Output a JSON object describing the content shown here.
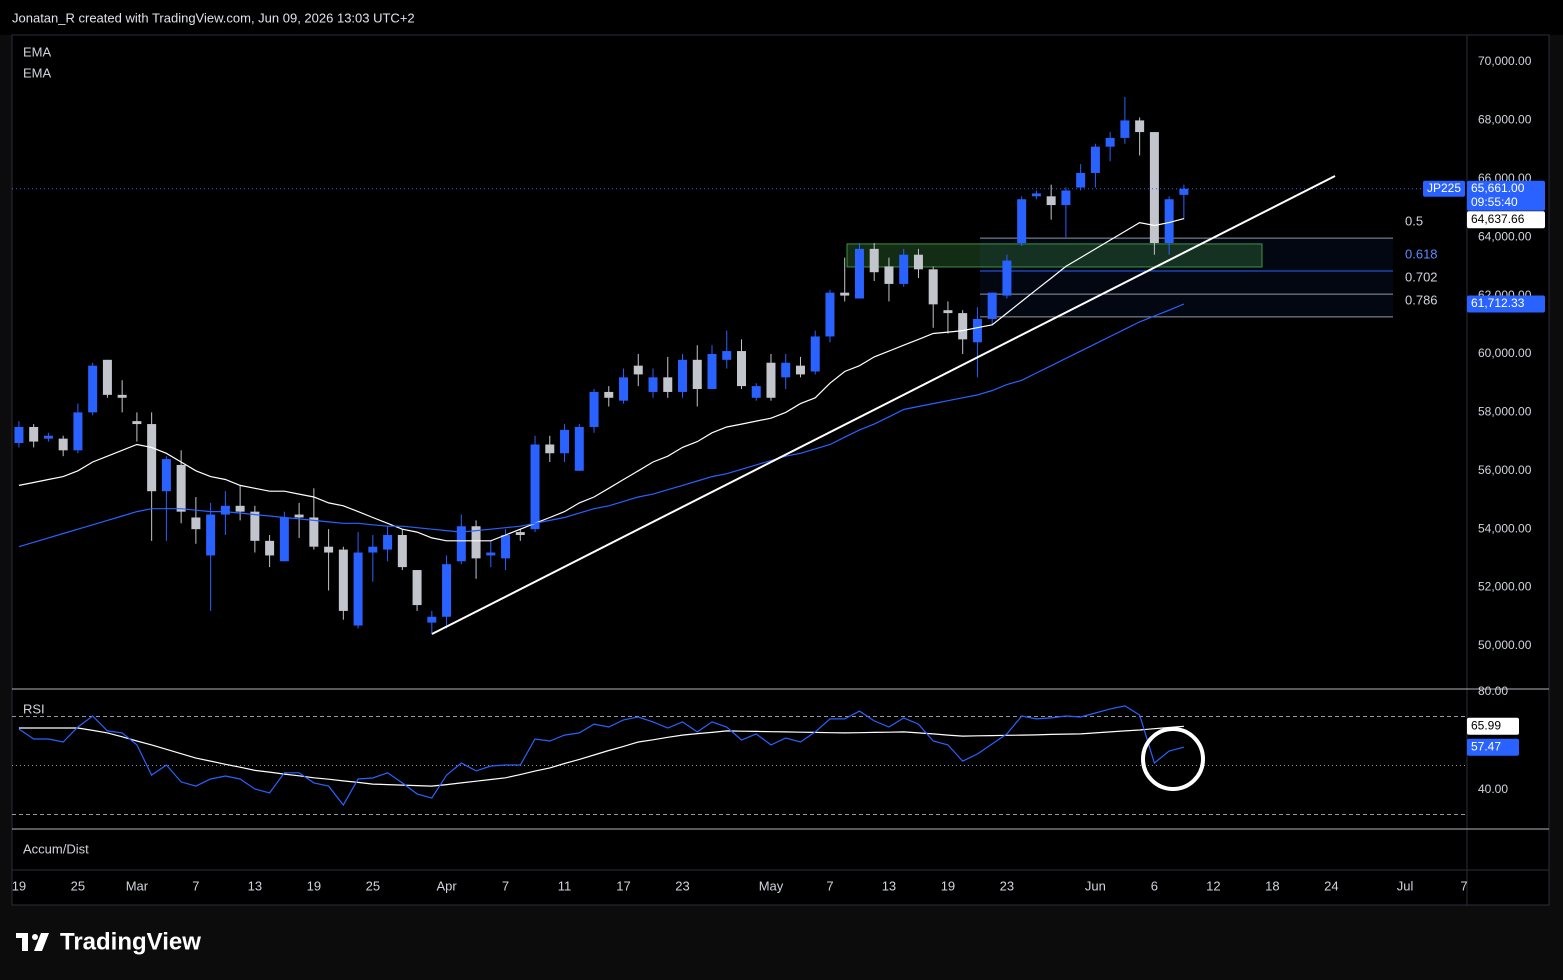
{
  "header": {
    "attribution": "Jonatan_R created with TradingView.com, Jun 09, 2026 13:03 UTC+2"
  },
  "footer": {
    "logo": "TradingView"
  },
  "chart_data": [
    {
      "type": "candlestick",
      "symbol": "JP225",
      "countdown": "09:55:40",
      "colors": {
        "up": "#2962ff",
        "down": "#c3c5cc"
      },
      "open": [
        56950,
        57500,
        57100,
        57100,
        56700,
        58000,
        59800,
        58600,
        57700,
        57600,
        55300,
        56200,
        54400,
        53100,
        54500,
        54800,
        54600,
        53600,
        52900,
        54500,
        54400,
        53400,
        53300,
        50700,
        53200,
        53300,
        53800,
        52600,
        50800,
        51000,
        52900,
        54100,
        53100,
        53000,
        53900,
        54000,
        56900,
        56600,
        56000,
        57500,
        58700,
        58400,
        59600,
        58700,
        59200,
        58700,
        59800,
        58800,
        59800,
        60100,
        58500,
        59700,
        59200,
        59600,
        59400,
        60600,
        62100,
        61900,
        63600,
        63000,
        62400,
        63400,
        62900,
        61500,
        61400,
        60400,
        61200,
        62000,
        63800,
        65400,
        65400,
        65100,
        65700,
        66200,
        67100,
        67400,
        68000,
        67600,
        63800,
        65450
      ],
      "high": [
        57700,
        57600,
        57300,
        57200,
        58300,
        59700,
        59800,
        59100,
        58000,
        58000,
        56500,
        56700,
        55100,
        54900,
        55300,
        55500,
        54800,
        53800,
        54600,
        54900,
        55400,
        54000,
        53400,
        53900,
        53800,
        54100,
        54000,
        52600,
        51200,
        53100,
        54500,
        54300,
        53600,
        54000,
        54000,
        57200,
        57200,
        57600,
        57600,
        58800,
        58900,
        59500,
        60000,
        59500,
        59900,
        60000,
        60300,
        60300,
        60800,
        60500,
        59000,
        60000,
        60000,
        59900,
        60800,
        62200,
        63300,
        63800,
        63800,
        63300,
        63600,
        63600,
        63000,
        61800,
        61500,
        61600,
        62100,
        63400,
        65400,
        65600,
        65800,
        65700,
        66500,
        67200,
        67600,
        68800,
        68100,
        67600,
        65400,
        65800
      ],
      "low": [
        56800,
        56800,
        57000,
        56500,
        56600,
        57900,
        58500,
        58000,
        57000,
        53600,
        53600,
        54200,
        53500,
        51200,
        53800,
        54300,
        53200,
        52700,
        52900,
        53700,
        53300,
        51900,
        50900,
        50600,
        52200,
        52900,
        52600,
        51200,
        50400,
        50600,
        52800,
        52300,
        52700,
        52600,
        53600,
        53900,
        56300,
        56300,
        56000,
        57300,
        58200,
        58300,
        58900,
        58500,
        58500,
        58500,
        58200,
        58800,
        59500,
        58800,
        58400,
        58400,
        58800,
        59200,
        59300,
        60400,
        61800,
        61900,
        62500,
        61800,
        62300,
        62600,
        60900,
        60700,
        60000,
        59200,
        61000,
        61900,
        63700,
        65300,
        64600,
        64000,
        65600,
        65700,
        66600,
        67200,
        66800,
        63400,
        63400,
        64600
      ],
      "close": [
        57500,
        57000,
        57200,
        56700,
        58000,
        59600,
        58600,
        58500,
        57600,
        55300,
        56400,
        54600,
        54000,
        54500,
        54800,
        54600,
        53600,
        53100,
        54400,
        54400,
        53400,
        53200,
        51200,
        53200,
        53400,
        53800,
        52700,
        51400,
        51000,
        52800,
        54100,
        53000,
        53200,
        53800,
        53800,
        56900,
        56600,
        57400,
        57500,
        58700,
        58500,
        59200,
        59300,
        59200,
        58700,
        59800,
        58800,
        60000,
        60100,
        58900,
        58900,
        58500,
        59700,
        59300,
        60600,
        62100,
        62000,
        63600,
        62800,
        62400,
        63400,
        62900,
        61700,
        61400,
        60500,
        61200,
        62100,
        63200,
        65300,
        65500,
        65100,
        65600,
        66200,
        67100,
        67400,
        68000,
        67600,
        63800,
        65300,
        65661
      ],
      "last_label": "65,661.00",
      "series": [
        {
          "name": "EMA",
          "color": "#ffffff",
          "last_label": "64,637.66",
          "values": [
            55500,
            55600,
            55700,
            55800,
            56000,
            56300,
            56500,
            56700,
            56900,
            56800,
            56600,
            56300,
            56000,
            55800,
            55700,
            55500,
            55400,
            55300,
            55300,
            55200,
            55100,
            54900,
            54800,
            54600,
            54400,
            54200,
            54000,
            53900,
            53700,
            53600,
            53600,
            53600,
            53600,
            53800,
            54000,
            54200,
            54400,
            54600,
            54900,
            55100,
            55400,
            55700,
            56000,
            56300,
            56500,
            56800,
            57000,
            57300,
            57500,
            57600,
            57700,
            57800,
            58000,
            58300,
            58500,
            59000,
            59400,
            59600,
            59900,
            60100,
            60300,
            60500,
            60700,
            60750,
            60800,
            60900,
            61000,
            61400,
            61800,
            62200,
            62600,
            63000,
            63300,
            63600,
            63900,
            64200,
            64500,
            64400,
            64500,
            64637.66
          ]
        },
        {
          "name": "EMA",
          "color": "#2962ff",
          "last_label": "61,712.33",
          "values": [
            53400,
            53550,
            53700,
            53850,
            54000,
            54150,
            54300,
            54450,
            54600,
            54700,
            54700,
            54700,
            54650,
            54600,
            54600,
            54550,
            54500,
            54450,
            54400,
            54350,
            54300,
            54250,
            54200,
            54200,
            54150,
            54100,
            54100,
            54050,
            54000,
            53950,
            53900,
            53950,
            54000,
            54050,
            54100,
            54200,
            54300,
            54400,
            54550,
            54700,
            54800,
            54950,
            55100,
            55200,
            55350,
            55500,
            55650,
            55800,
            55900,
            56050,
            56200,
            56350,
            56500,
            56600,
            56750,
            56900,
            57150,
            57400,
            57600,
            57850,
            58100,
            58200,
            58300,
            58400,
            58500,
            58600,
            58750,
            58950,
            59100,
            59350,
            59600,
            59850,
            60100,
            60350,
            60600,
            60850,
            61100,
            61300,
            61500,
            61712.33
          ]
        }
      ],
      "fib": [
        {
          "ratio": 0.5,
          "price": 63970,
          "color": "#9598a1"
        },
        {
          "ratio": 0.618,
          "price": 62840,
          "color": "#2962ff"
        },
        {
          "ratio": 0.702,
          "price": 62050,
          "color": "#9598a1"
        },
        {
          "ratio": 0.786,
          "price": 61270,
          "color": "#9598a1"
        }
      ],
      "zone": {
        "low": 62980,
        "high": 63770,
        "color": "#4caf50"
      },
      "ylim": [
        48560,
        70925
      ],
      "yticks": [
        {
          "value": 50000,
          "label": "50,000.00"
        },
        {
          "value": 52000,
          "label": "52,000.00"
        },
        {
          "value": 54000,
          "label": "54,000.00"
        },
        {
          "value": 56000,
          "label": "56,000.00"
        },
        {
          "value": 58000,
          "label": "58,000.00"
        },
        {
          "value": 60000,
          "label": "60,000.00"
        },
        {
          "value": 62000,
          "label": "62,000.00"
        },
        {
          "value": 64000,
          "label": "64,000.00"
        },
        {
          "value": 66000,
          "label": "66,000.00"
        },
        {
          "value": 68000,
          "label": "68,000.00"
        },
        {
          "value": 70000,
          "label": "70,000.00"
        }
      ],
      "xlim": [
        -0.47,
        98.2
      ],
      "xticks": [
        {
          "value": 0,
          "label": "19"
        },
        {
          "value": 4,
          "label": "25"
        },
        {
          "value": 8,
          "label": "Mar"
        },
        {
          "value": 12,
          "label": "7"
        },
        {
          "value": 16,
          "label": "13"
        },
        {
          "value": 20,
          "label": "19"
        },
        {
          "value": 24,
          "label": "25"
        },
        {
          "value": 29,
          "label": "Apr"
        },
        {
          "value": 33,
          "label": "7"
        },
        {
          "value": 37,
          "label": "11"
        },
        {
          "value": 41,
          "label": "17"
        },
        {
          "value": 45,
          "label": "23"
        },
        {
          "value": 51,
          "label": "May"
        },
        {
          "value": 55,
          "label": "7"
        },
        {
          "value": 59,
          "label": "13"
        },
        {
          "value": 63,
          "label": "19"
        },
        {
          "value": 67,
          "label": "23"
        },
        {
          "value": 73,
          "label": "Jun"
        },
        {
          "value": 77,
          "label": "6"
        },
        {
          "value": 81,
          "label": "12"
        },
        {
          "value": 85,
          "label": "18"
        },
        {
          "value": 89,
          "label": "24"
        },
        {
          "value": 94,
          "label": "Jul"
        },
        {
          "value": 98,
          "label": "7"
        }
      ],
      "grid": false
    },
    {
      "type": "line",
      "title": "RSI",
      "ylim": [
        24.5,
        80.8
      ],
      "yticks": [
        {
          "value": 80,
          "label": "80.00"
        },
        {
          "value": 40,
          "label": "40.00"
        }
      ],
      "levels": [
        70,
        50,
        30
      ],
      "series": [
        {
          "color": "#ffffff",
          "last_label": "65.99",
          "values": [
            65.3,
            65.3,
            65.3,
            65.3,
            65.3,
            64.3,
            63.3,
            61.7,
            60.0,
            58.4,
            56.6,
            54.8,
            53.0,
            51.8,
            50.5,
            49.3,
            48.0,
            47.3,
            46.5,
            45.8,
            45.0,
            44.4,
            43.7,
            43.1,
            42.4,
            42.2,
            42.0,
            41.8,
            41.6,
            42.2,
            42.9,
            43.6,
            44.3,
            45.0,
            46.3,
            47.7,
            49.0,
            50.8,
            52.5,
            54.3,
            56.1,
            57.8,
            59.6,
            60.5,
            61.5,
            62.4,
            63.0,
            63.5,
            64.1,
            64.0,
            63.9,
            63.8,
            63.7,
            63.6,
            63.5,
            63.4,
            63.3,
            63.4,
            63.5,
            63.6,
            63.7,
            63.3,
            62.9,
            62.4,
            62.0,
            62.1,
            62.2,
            62.3,
            62.4,
            62.5,
            62.7,
            62.8,
            62.9,
            63.3,
            63.7,
            64.1,
            64.5,
            65.0,
            65.5,
            65.99
          ]
        },
        {
          "color": "#2962ff",
          "last_label": "57.47",
          "values": [
            64.9,
            60.8,
            60.8,
            59.6,
            65.7,
            70.2,
            64.1,
            63.3,
            58.4,
            46.1,
            50.2,
            43.3,
            41.6,
            44.5,
            45.7,
            44.5,
            40.4,
            38.8,
            47.0,
            47.0,
            42.9,
            41.6,
            33.9,
            44.5,
            44.9,
            47.0,
            42.9,
            38.4,
            36.7,
            46.1,
            51.0,
            47.8,
            49.8,
            50.2,
            50.2,
            60.8,
            60.0,
            62.4,
            63.3,
            66.9,
            65.7,
            68.6,
            69.8,
            67.8,
            65.3,
            67.8,
            63.7,
            67.8,
            65.7,
            60.4,
            62.9,
            58.4,
            61.2,
            59.6,
            63.7,
            69.0,
            69.0,
            72.2,
            68.2,
            65.7,
            69.4,
            66.9,
            60.0,
            58.4,
            51.8,
            54.7,
            58.8,
            62.9,
            70.2,
            69.0,
            69.4,
            70.2,
            69.8,
            71.4,
            73.1,
            74.3,
            70.6,
            51.0,
            55.9,
            57.47
          ]
        }
      ]
    },
    {
      "type": "line",
      "title": "Accum/Dist"
    }
  ]
}
